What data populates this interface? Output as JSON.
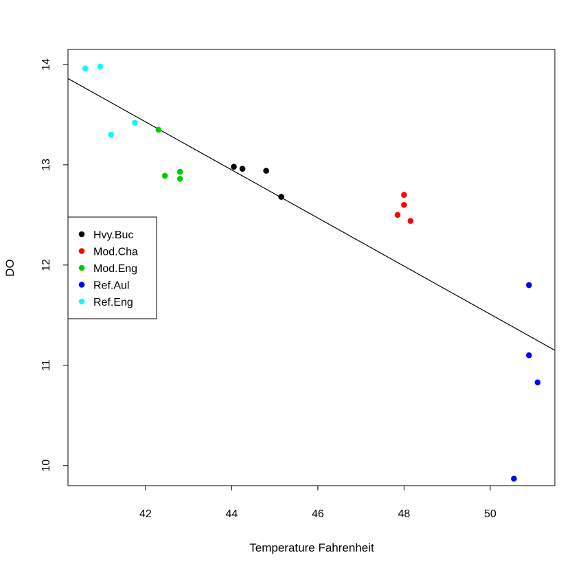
{
  "chart_data": {
    "type": "scatter",
    "title": "",
    "xlabel": "Temperature Fahrenheit",
    "ylabel": "DO",
    "xlim": [
      40.2,
      51.5
    ],
    "ylim": [
      9.8,
      14.15
    ],
    "xticks": [
      "42",
      "44",
      "46",
      "48",
      "50"
    ],
    "yticks": [
      "10",
      "11",
      "12",
      "13",
      "14"
    ],
    "grid": false,
    "legend_position": "middle-left",
    "series": [
      {
        "name": "Hvy.Buc",
        "color": "#000000",
        "points": [
          [
            44.05,
            12.98
          ],
          [
            44.25,
            12.96
          ],
          [
            44.8,
            12.94
          ],
          [
            45.15,
            12.68
          ]
        ]
      },
      {
        "name": "Mod.Cha",
        "color": "#ff0000",
        "points": [
          [
            48.0,
            12.7
          ],
          [
            48.0,
            12.6
          ],
          [
            47.85,
            12.5
          ],
          [
            48.15,
            12.44
          ]
        ]
      },
      {
        "name": "Mod.Eng",
        "color": "#00cd00",
        "points": [
          [
            42.3,
            13.35
          ],
          [
            42.8,
            12.93
          ],
          [
            42.45,
            12.89
          ],
          [
            42.8,
            12.86
          ]
        ]
      },
      {
        "name": "Ref.Aul",
        "color": "#0000ff",
        "points": [
          [
            50.9,
            11.8
          ],
          [
            50.9,
            11.1
          ],
          [
            51.1,
            10.83
          ],
          [
            50.55,
            9.87
          ]
        ]
      },
      {
        "name": "Ref.Eng",
        "color": "#00ffff",
        "points": [
          [
            40.6,
            13.96
          ],
          [
            40.95,
            13.98
          ],
          [
            41.75,
            13.42
          ],
          [
            41.2,
            13.3
          ]
        ]
      }
    ],
    "regression_line": {
      "x": [
        40.2,
        51.5
      ],
      "y": [
        13.86,
        11.15
      ],
      "color": "#000000"
    }
  }
}
